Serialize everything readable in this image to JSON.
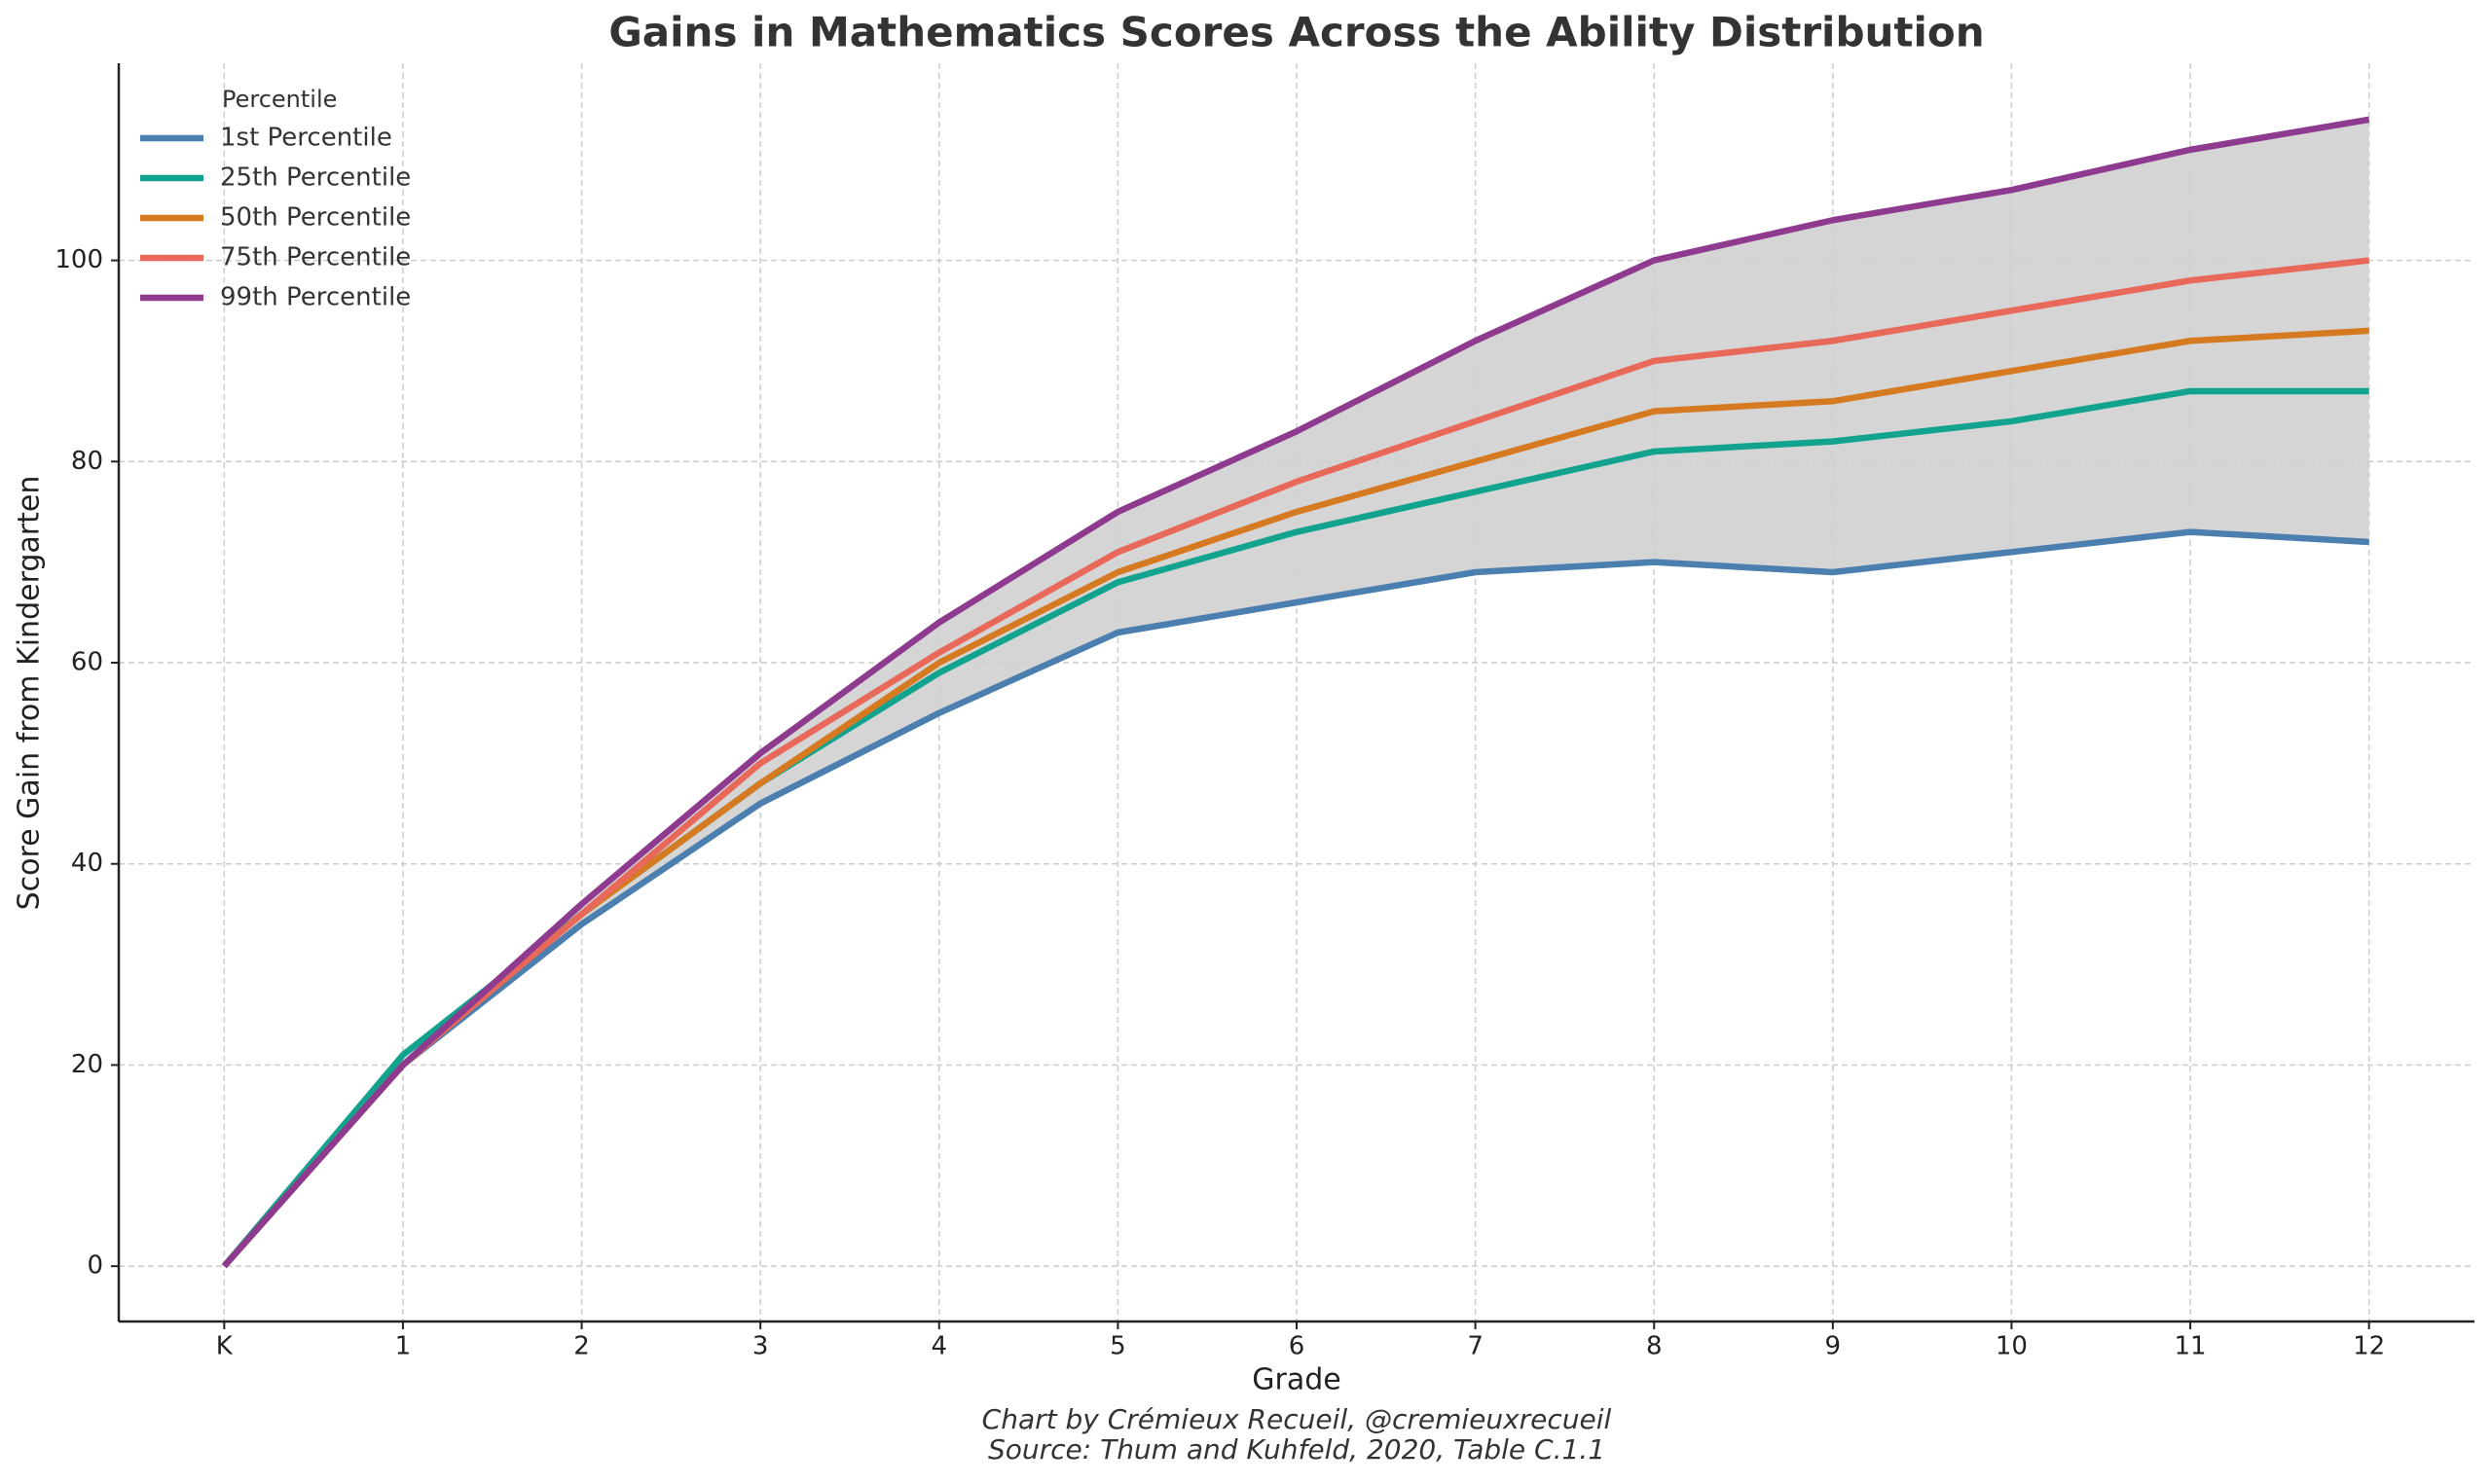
{
  "chart_data": {
    "type": "line",
    "title": "Gains in Mathematics Scores Across the Ability Distribution",
    "xlabel": "Grade",
    "ylabel": "Score Gain from Kindergarten",
    "caption": [
      "Chart by Crémieux Recueil, @cremieuxrecueil",
      "Source: Thum and Kuhfeld, 2020, Table C.1.1"
    ],
    "legend_title": "Percentile",
    "legend_position": "upper left",
    "grid": true,
    "band_color": "#d0d0d0",
    "categories": [
      "K",
      "1",
      "2",
      "3",
      "4",
      "5",
      "6",
      "7",
      "8",
      "9",
      "10",
      "11",
      "12"
    ],
    "ylim": [
      -5.5,
      119.6
    ],
    "yticks": [
      0,
      20,
      40,
      60,
      80,
      100
    ],
    "series": [
      {
        "name": "1st Percentile",
        "color": "#4a7fb0",
        "values": [
          0,
          20,
          34,
          46,
          55,
          63,
          66,
          69,
          70,
          69,
          71,
          73,
          72
        ]
      },
      {
        "name": "25th Percentile",
        "color": "#12a38f",
        "values": [
          0,
          21,
          35,
          48,
          59,
          68,
          73,
          77,
          81,
          82,
          84,
          87,
          87
        ]
      },
      {
        "name": "50th Percentile",
        "color": "#d67a22",
        "values": [
          0,
          20,
          35,
          48,
          60,
          69,
          75,
          80,
          85,
          86,
          89,
          92,
          93
        ]
      },
      {
        "name": "75th Percentile",
        "color": "#e8685a",
        "values": [
          0,
          20,
          35,
          50,
          61,
          71,
          78,
          84,
          90,
          92,
          95,
          98,
          100
        ]
      },
      {
        "name": "99th Percentile",
        "color": "#8e3a8e",
        "values": [
          0,
          20,
          36,
          51,
          64,
          75,
          83,
          92,
          100,
          104,
          107,
          111,
          114
        ]
      }
    ]
  }
}
